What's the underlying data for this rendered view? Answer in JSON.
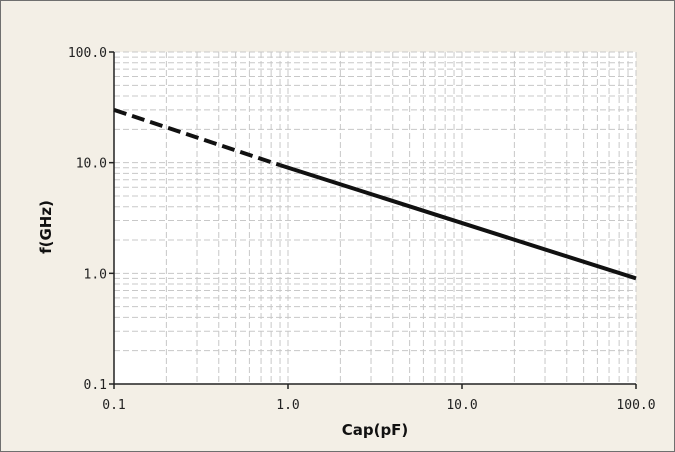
{
  "chart_data": {
    "type": "line",
    "title": "",
    "xlabel": "Cap(pF)",
    "ylabel": "f(GHz)",
    "xscale": "log",
    "yscale": "log",
    "xlim": [
      0.1,
      100.0
    ],
    "ylim": [
      0.1,
      100.0
    ],
    "grid": true,
    "x_ticks": [
      "0.1",
      "1.0",
      "10.0",
      "100.0"
    ],
    "y_ticks": [
      "0.1",
      "1.0",
      "10.0",
      "100.0"
    ],
    "series": [
      {
        "style": "dashed",
        "color": "#111111",
        "x": [
          0.1,
          0.9
        ],
        "y": [
          30.0,
          9.5
        ]
      },
      {
        "style": "solid",
        "color": "#111111",
        "x": [
          0.9,
          100.0
        ],
        "y": [
          9.5,
          0.9
        ]
      }
    ]
  },
  "colors": {
    "background": "#f3efe6",
    "plot_area": "#ffffff",
    "grid": "#c8c8c8",
    "axis": "#222222"
  }
}
